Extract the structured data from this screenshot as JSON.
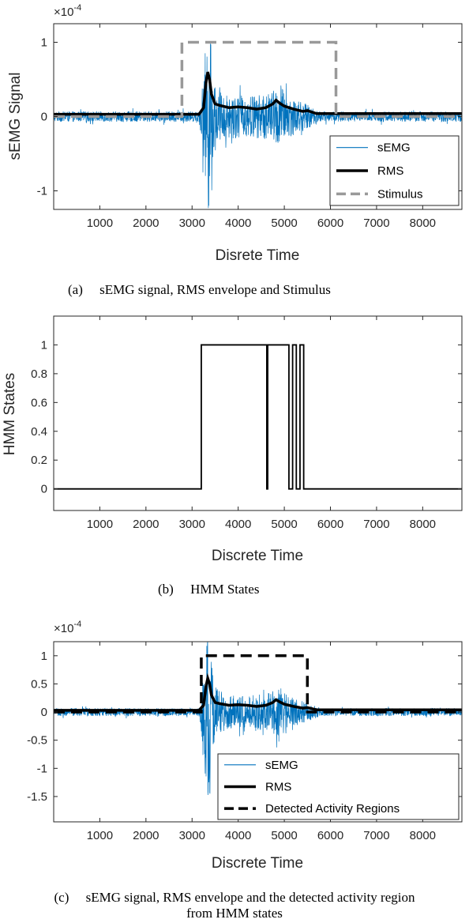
{
  "chart_data": [
    {
      "type": "line",
      "panel": "a",
      "caption": "(a)     sEMG signal, RMS envelope and Stimulus",
      "xlabel": "Disrete Time",
      "ylabel": "sEMG Signal",
      "exponent_label": "×10",
      "exponent_power": "-4",
      "xlim": [
        0,
        8850
      ],
      "ylim": [
        -1.25,
        1.25
      ],
      "xticks": [
        1000,
        2000,
        3000,
        4000,
        5000,
        6000,
        7000,
        8000
      ],
      "xtick_labels": [
        "1000",
        "2000",
        "3000",
        "4000",
        "5000",
        "6000",
        "7000",
        "8000"
      ],
      "yticks": [
        -1,
        0,
        1
      ],
      "ytick_labels": [
        "-1",
        "0",
        "1"
      ],
      "legend": {
        "placement": "bottom-right",
        "entries": [
          "sEMG",
          "RMS",
          "Stimulus"
        ]
      },
      "series": [
        {
          "name": "sEMG",
          "style": "noise",
          "color": "#0072BD",
          "baseline_amp": 0.07,
          "envelope": [
            [
              0,
              0.07
            ],
            [
              3150,
              0.07
            ],
            [
              3260,
              0.6
            ],
            [
              3320,
              1.25
            ],
            [
              3380,
              1.25
            ],
            [
              3450,
              0.6
            ],
            [
              3550,
              0.35
            ],
            [
              3800,
              0.3
            ],
            [
              4200,
              0.28
            ],
            [
              4700,
              0.32
            ],
            [
              4900,
              0.45
            ],
            [
              5100,
              0.28
            ],
            [
              5400,
              0.2
            ],
            [
              5700,
              0.1
            ],
            [
              5800,
              0.07
            ],
            [
              8850,
              0.07
            ]
          ]
        },
        {
          "name": "RMS",
          "style": "solid",
          "color": "#000000",
          "x": [
            0,
            3150,
            3250,
            3300,
            3340,
            3380,
            3420,
            3500,
            3600,
            3800,
            4000,
            4200,
            4400,
            4600,
            4750,
            4820,
            4900,
            5000,
            5200,
            5400,
            5500,
            5600,
            5700,
            8850
          ],
          "y": [
            0.03,
            0.03,
            0.12,
            0.45,
            0.6,
            0.5,
            0.3,
            0.17,
            0.15,
            0.12,
            0.13,
            0.12,
            0.1,
            0.12,
            0.17,
            0.22,
            0.18,
            0.14,
            0.1,
            0.07,
            0.08,
            0.06,
            0.04,
            0.04
          ]
        },
        {
          "name": "Stimulus",
          "style": "dashed",
          "color": "#999999",
          "x": [
            0,
            2780,
            2780,
            6120,
            6120,
            8850
          ],
          "y": [
            0,
            0,
            1,
            1,
            0,
            0
          ]
        }
      ]
    },
    {
      "type": "line",
      "panel": "b",
      "caption": "(b)     HMM States",
      "xlabel": "Discrete Time",
      "ylabel": "HMM States",
      "xlim": [
        0,
        8850
      ],
      "ylim": [
        -0.15,
        1.2
      ],
      "xticks": [
        1000,
        2000,
        3000,
        4000,
        5000,
        6000,
        7000,
        8000
      ],
      "xtick_labels": [
        "1000",
        "2000",
        "3000",
        "4000",
        "5000",
        "6000",
        "7000",
        "8000"
      ],
      "yticks": [
        0,
        0.2,
        0.4,
        0.6,
        0.8,
        1
      ],
      "ytick_labels": [
        "0",
        "0.2",
        "0.4",
        "0.6",
        "0.8",
        "1"
      ],
      "series": [
        {
          "style": "solid",
          "color": "#000000",
          "x": [
            0,
            3200,
            3200,
            4620,
            4620,
            4640,
            4640,
            5100,
            5100,
            5180,
            5180,
            5260,
            5260,
            5340,
            5340,
            5420,
            5420,
            5500,
            5500,
            8850
          ],
          "y": [
            0,
            0,
            1,
            1,
            0,
            0,
            1,
            1,
            0,
            0,
            1,
            1,
            0,
            0,
            1,
            1,
            0,
            0,
            0,
            0
          ]
        }
      ]
    },
    {
      "type": "line",
      "panel": "c",
      "caption_line1": "(c)     sEMG signal, RMS envelope and the detected activity region",
      "caption_line2": "from HMM states",
      "xlabel": "Discrete Time",
      "ylabel": "",
      "exponent_label": "×10",
      "exponent_power": "-4",
      "xlim": [
        0,
        8850
      ],
      "ylim": [
        -1.95,
        1.25
      ],
      "xticks": [
        1000,
        2000,
        3000,
        4000,
        5000,
        6000,
        7000,
        8000
      ],
      "xtick_labels": [
        "1000",
        "2000",
        "3000",
        "4000",
        "5000",
        "6000",
        "7000",
        "8000"
      ],
      "yticks": [
        -1.5,
        -1,
        -0.5,
        0,
        0.5,
        1
      ],
      "ytick_labels": [
        "-1.5",
        "-1",
        "-0.5",
        "0",
        "0.5",
        "1"
      ],
      "legend": {
        "placement": "bottom-right",
        "entries": [
          "sEMG",
          "RMS",
          "Detected Activity Regions"
        ]
      },
      "series": [
        {
          "name": "sEMG",
          "style": "noise",
          "color": "#0072BD",
          "baseline_amp": 0.07,
          "envelope": [
            [
              0,
              0.07
            ],
            [
              3150,
              0.07
            ],
            [
              3260,
              0.8
            ],
            [
              3320,
              1.6
            ],
            [
              3380,
              1.6
            ],
            [
              3450,
              0.7
            ],
            [
              3550,
              0.4
            ],
            [
              3800,
              0.3
            ],
            [
              4200,
              0.28
            ],
            [
              4700,
              0.35
            ],
            [
              4900,
              0.45
            ],
            [
              5100,
              0.28
            ],
            [
              5400,
              0.2
            ],
            [
              5700,
              0.1
            ],
            [
              5800,
              0.07
            ],
            [
              8850,
              0.07
            ]
          ]
        },
        {
          "name": "RMS",
          "style": "solid",
          "color": "#000000",
          "x": [
            0,
            3150,
            3250,
            3300,
            3340,
            3380,
            3420,
            3500,
            3600,
            3800,
            4000,
            4200,
            4400,
            4600,
            4750,
            4820,
            4900,
            5000,
            5200,
            5400,
            5500,
            5600,
            5700,
            8850
          ],
          "y": [
            0.03,
            0.03,
            0.12,
            0.45,
            0.6,
            0.5,
            0.3,
            0.17,
            0.15,
            0.12,
            0.13,
            0.12,
            0.1,
            0.12,
            0.17,
            0.22,
            0.18,
            0.14,
            0.1,
            0.07,
            0.08,
            0.06,
            0.04,
            0.04
          ]
        },
        {
          "name": "Detected Activity Regions",
          "style": "dashed",
          "color": "#000000",
          "x": [
            0,
            3200,
            3200,
            5500,
            5500,
            8850
          ],
          "y": [
            0,
            0,
            1,
            1,
            0,
            0
          ]
        }
      ]
    }
  ]
}
